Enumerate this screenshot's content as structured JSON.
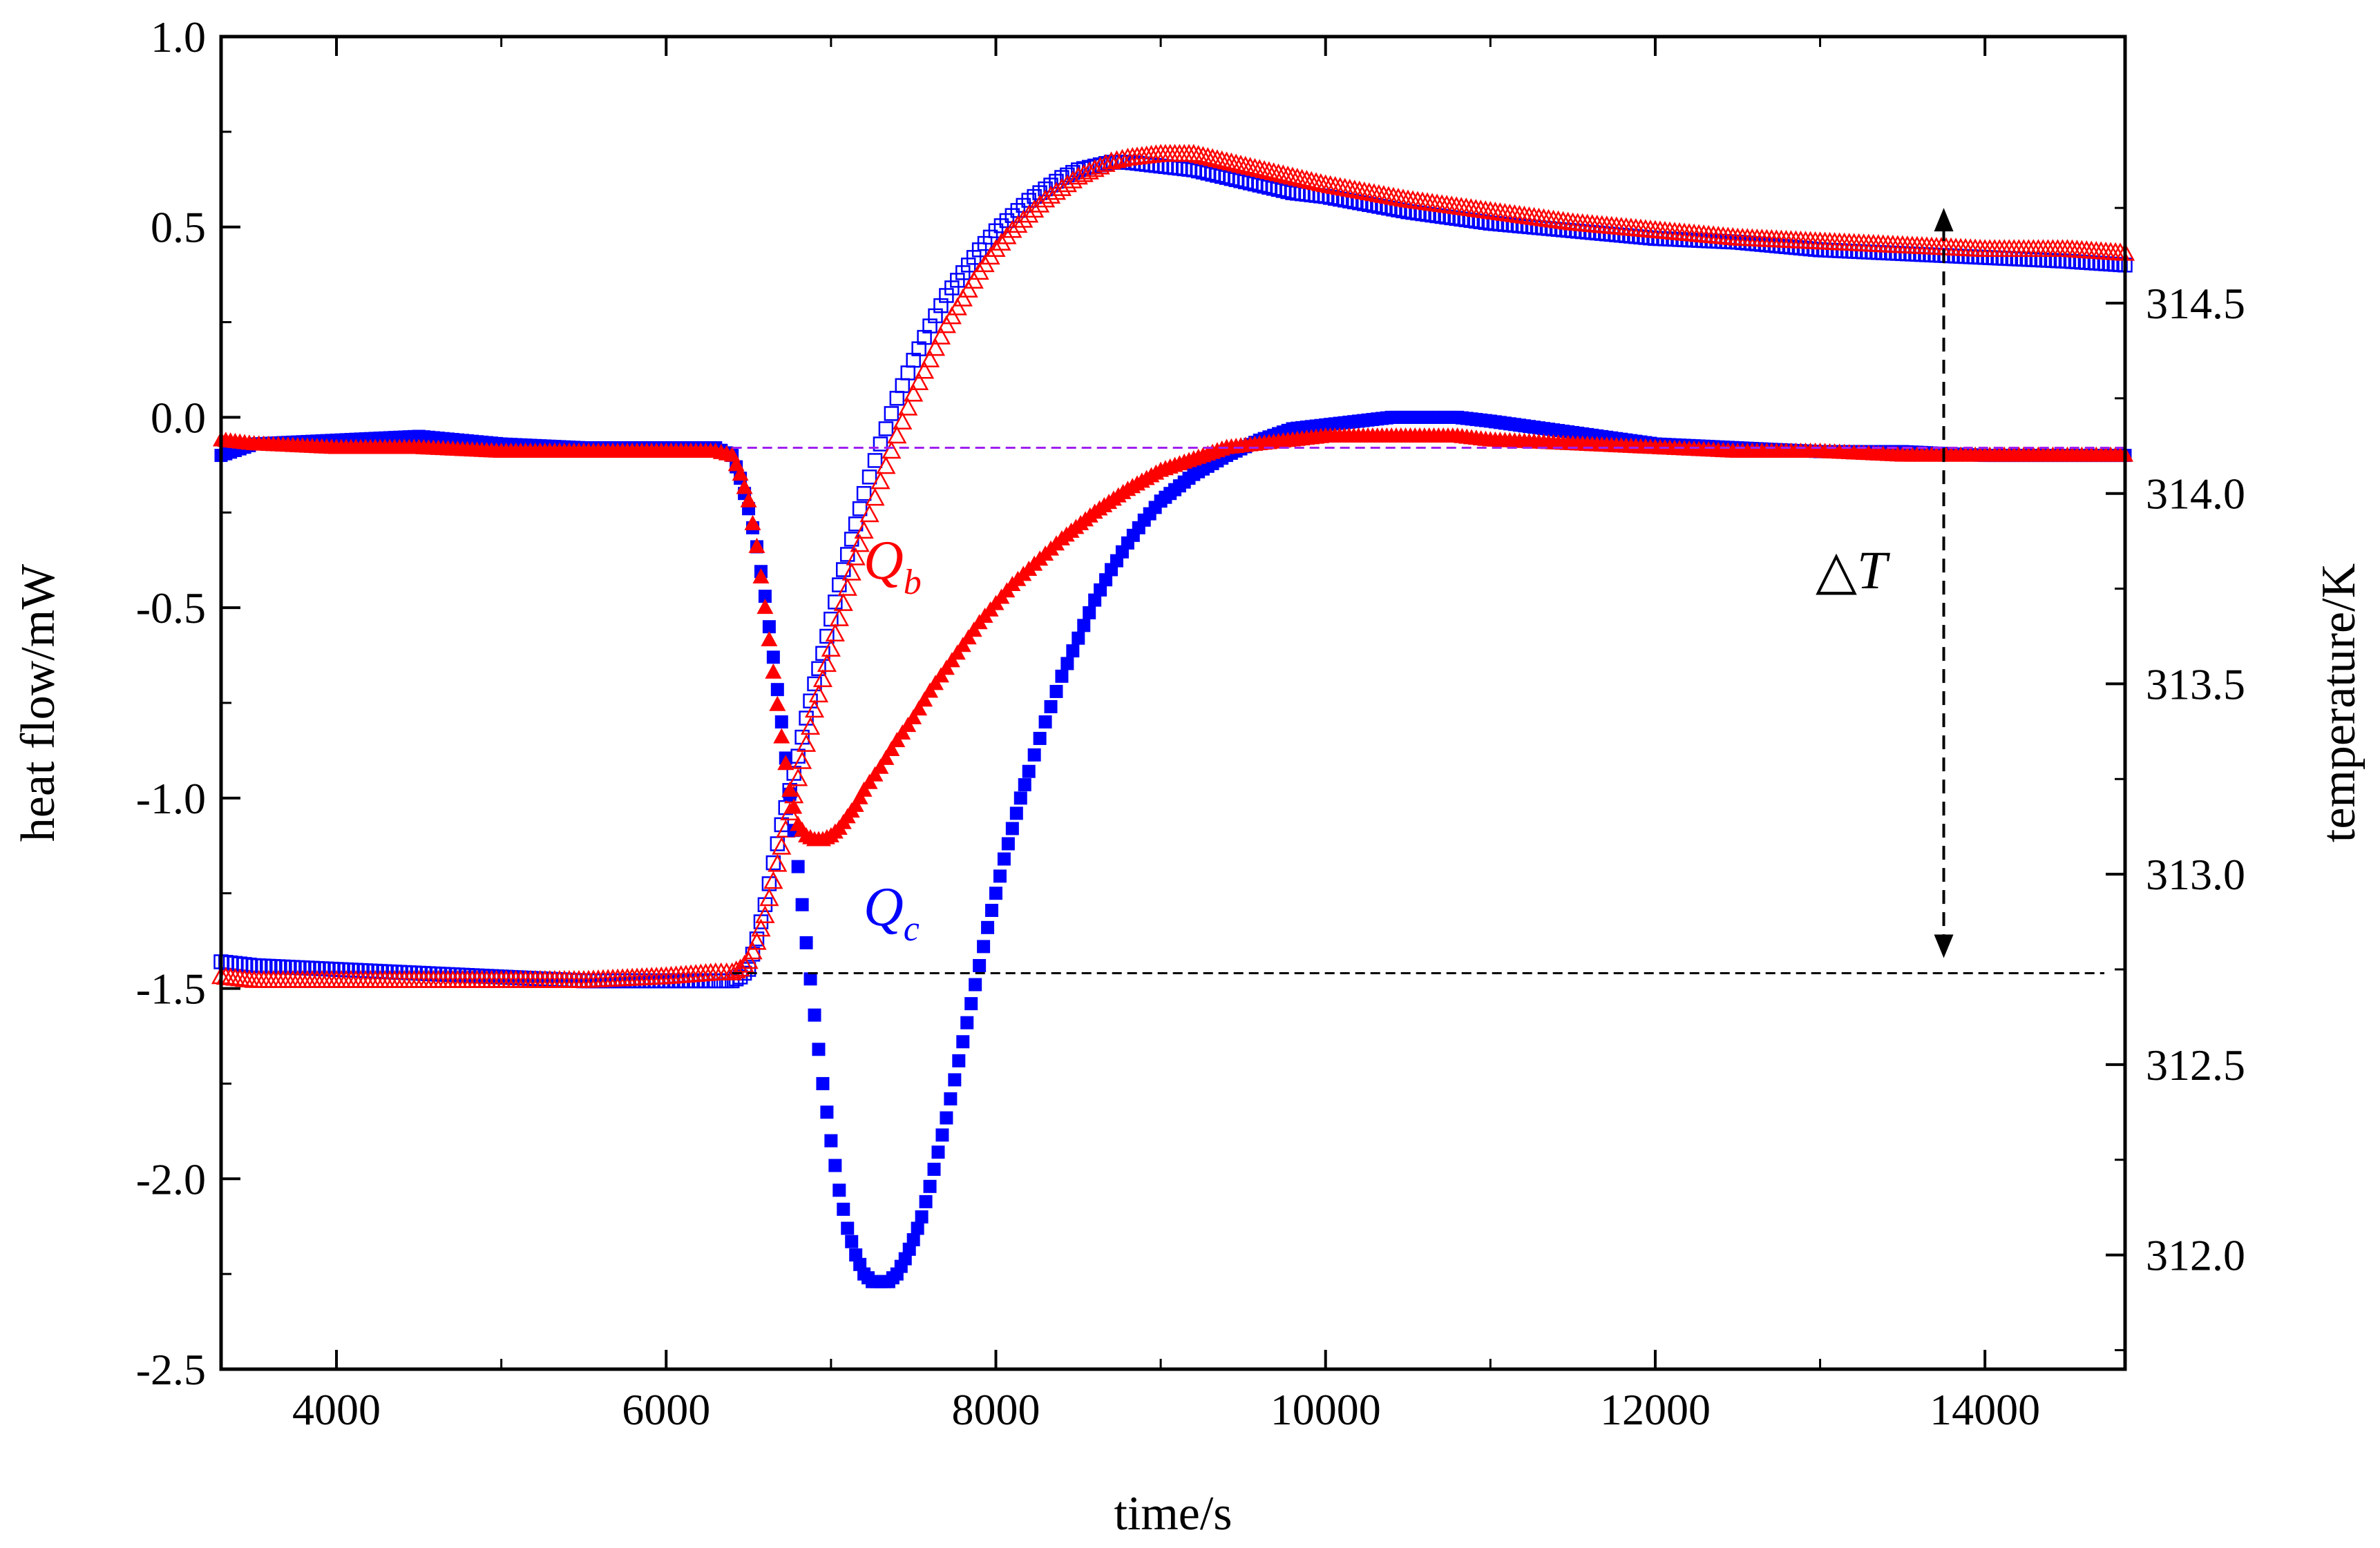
{
  "chart_data": {
    "type": "scatter",
    "xlabel": "time/s",
    "ylabel_left": "heat flow/mW",
    "ylabel_right": "temperature/K",
    "xlim": [
      3300,
      14850
    ],
    "ylim_left": [
      -2.5,
      1.0
    ],
    "ylim_right": [
      311.7,
      315.2
    ],
    "x_ticks": [
      4000,
      6000,
      8000,
      10000,
      12000,
      14000
    ],
    "y_left_ticks": [
      "1.0",
      "0.5",
      "0.0",
      "-0.5",
      "-1.0",
      "-1.5",
      "-2.0",
      "-2.5"
    ],
    "y_left_tick_values": [
      1.0,
      0.5,
      0.0,
      -0.5,
      -1.0,
      -1.5,
      -2.0,
      -2.5
    ],
    "y_right_ticks": [
      "314.5",
      "314.0",
      "313.5",
      "313.0",
      "312.5",
      "312.0"
    ],
    "y_right_tick_values": [
      314.5,
      314.0,
      313.5,
      313.0,
      312.5,
      312.0
    ],
    "grid": false,
    "series": [
      {
        "name": "Q_c heat flow",
        "axis": "left",
        "marker": "filled-square",
        "color": "#0000ff",
        "x": [
          3300,
          3500,
          4000,
          4500,
          5000,
          5500,
          6000,
          6300,
          6400,
          6450,
          6500,
          6550,
          6600,
          6650,
          6700,
          6750,
          6800,
          6850,
          6900,
          6950,
          7000,
          7050,
          7100,
          7150,
          7200,
          7250,
          7300,
          7350,
          7400,
          7450,
          7500,
          7550,
          7600,
          7650,
          7700,
          7750,
          7800,
          7850,
          7900,
          7950,
          8000,
          8050,
          8100,
          8150,
          8200,
          8300,
          8400,
          8500,
          8600,
          8700,
          8800,
          8900,
          9000,
          9200,
          9400,
          9600,
          9800,
          10000,
          10200,
          10400,
          10600,
          10800,
          11000,
          11500,
          12000,
          12500,
          13000,
          13500,
          14000,
          14500,
          14850
        ],
        "y": [
          -0.1,
          -0.07,
          -0.06,
          -0.05,
          -0.07,
          -0.08,
          -0.08,
          -0.08,
          -0.1,
          -0.16,
          -0.24,
          -0.34,
          -0.47,
          -0.63,
          -0.8,
          -0.99,
          -1.18,
          -1.38,
          -1.57,
          -1.75,
          -1.9,
          -2.03,
          -2.13,
          -2.2,
          -2.25,
          -2.27,
          -2.27,
          -2.27,
          -2.25,
          -2.21,
          -2.16,
          -2.1,
          -2.02,
          -1.93,
          -1.84,
          -1.74,
          -1.64,
          -1.54,
          -1.44,
          -1.34,
          -1.25,
          -1.16,
          -1.08,
          -1.0,
          -0.93,
          -0.8,
          -0.68,
          -0.58,
          -0.48,
          -0.4,
          -0.33,
          -0.27,
          -0.22,
          -0.15,
          -0.1,
          -0.06,
          -0.03,
          -0.02,
          -0.01,
          0.0,
          0.0,
          0.0,
          -0.01,
          -0.04,
          -0.07,
          -0.08,
          -0.09,
          -0.09,
          -0.1,
          -0.1,
          -0.1
        ]
      },
      {
        "name": "Q_b heat flow",
        "axis": "left",
        "marker": "filled-triangle",
        "color": "#ff0000",
        "x": [
          3300,
          3500,
          4000,
          4500,
          5000,
          5500,
          6000,
          6300,
          6400,
          6450,
          6500,
          6550,
          6600,
          6650,
          6700,
          6750,
          6800,
          6850,
          6900,
          6950,
          7000,
          7050,
          7100,
          7150,
          7200,
          7300,
          7400,
          7500,
          7600,
          7700,
          7800,
          7900,
          8000,
          8100,
          8200,
          8300,
          8400,
          8600,
          8800,
          9000,
          9200,
          9400,
          9600,
          9800,
          10000,
          10200,
          10400,
          10600,
          10800,
          11000,
          11500,
          12000,
          12500,
          13000,
          13500,
          14000,
          14500,
          14850
        ],
        "y": [
          -0.06,
          -0.07,
          -0.08,
          -0.08,
          -0.09,
          -0.09,
          -0.09,
          -0.09,
          -0.1,
          -0.15,
          -0.22,
          -0.34,
          -0.5,
          -0.67,
          -0.84,
          -0.98,
          -1.07,
          -1.1,
          -1.11,
          -1.11,
          -1.1,
          -1.08,
          -1.05,
          -1.02,
          -0.98,
          -0.92,
          -0.85,
          -0.79,
          -0.72,
          -0.66,
          -0.6,
          -0.54,
          -0.49,
          -0.44,
          -0.4,
          -0.36,
          -0.32,
          -0.25,
          -0.19,
          -0.14,
          -0.11,
          -0.08,
          -0.07,
          -0.06,
          -0.05,
          -0.05,
          -0.05,
          -0.05,
          -0.05,
          -0.06,
          -0.07,
          -0.08,
          -0.09,
          -0.09,
          -0.1,
          -0.1,
          -0.1,
          -0.1
        ]
      },
      {
        "name": "temperature (c)",
        "axis": "right",
        "marker": "open-square",
        "color": "#0000ff",
        "x": [
          3300,
          3500,
          4000,
          4500,
          5000,
          5500,
          6000,
          6300,
          6400,
          6450,
          6500,
          6550,
          6600,
          6650,
          6700,
          6750,
          6800,
          6850,
          6900,
          6950,
          7000,
          7050,
          7100,
          7150,
          7200,
          7300,
          7400,
          7500,
          7600,
          7700,
          7800,
          7900,
          8000,
          8100,
          8200,
          8300,
          8400,
          8500,
          8600,
          8700,
          8800,
          9000,
          9200,
          9400,
          9600,
          9800,
          10000,
          10500,
          11000,
          11500,
          12000,
          12500,
          13000,
          13500,
          14000,
          14500,
          14850
        ],
        "y": [
          312.77,
          312.76,
          312.75,
          312.74,
          312.73,
          312.72,
          312.72,
          312.72,
          312.72,
          312.73,
          312.75,
          312.83,
          312.92,
          313.03,
          313.13,
          313.22,
          313.31,
          313.41,
          313.5,
          313.58,
          313.67,
          313.76,
          313.84,
          313.92,
          314.0,
          314.13,
          314.25,
          314.35,
          314.44,
          314.52,
          314.58,
          314.64,
          314.69,
          314.73,
          314.77,
          314.8,
          314.83,
          314.85,
          314.86,
          314.87,
          314.87,
          314.86,
          314.85,
          314.83,
          314.81,
          314.79,
          314.78,
          314.74,
          314.71,
          314.69,
          314.67,
          314.66,
          314.64,
          314.63,
          314.62,
          314.61,
          314.6
        ]
      },
      {
        "name": "temperature (b)",
        "axis": "right",
        "marker": "open-triangle",
        "color": "#ff0000",
        "x": [
          3300,
          3500,
          4000,
          4500,
          5000,
          5500,
          6000,
          6300,
          6400,
          6450,
          6500,
          6550,
          6600,
          6650,
          6700,
          6750,
          6800,
          6850,
          6900,
          6950,
          7000,
          7050,
          7100,
          7150,
          7200,
          7300,
          7400,
          7500,
          7600,
          7700,
          7800,
          7900,
          8000,
          8100,
          8200,
          8300,
          8400,
          8500,
          8600,
          8700,
          8800,
          9000,
          9200,
          9400,
          9600,
          9800,
          10000,
          10500,
          11000,
          11500,
          12000,
          12500,
          13000,
          13500,
          14000,
          14500,
          14850
        ],
        "y": [
          312.73,
          312.72,
          312.72,
          312.72,
          312.72,
          312.72,
          312.73,
          312.74,
          312.74,
          312.75,
          312.77,
          312.82,
          312.89,
          312.98,
          313.07,
          313.16,
          313.25,
          313.34,
          313.43,
          313.51,
          313.59,
          313.67,
          313.75,
          313.83,
          313.9,
          314.03,
          314.15,
          314.26,
          314.35,
          314.44,
          314.51,
          314.58,
          314.64,
          314.69,
          314.73,
          314.77,
          314.8,
          314.83,
          314.85,
          314.87,
          314.88,
          314.89,
          314.89,
          314.87,
          314.85,
          314.83,
          314.81,
          314.77,
          314.74,
          314.71,
          314.69,
          314.67,
          314.66,
          314.65,
          314.64,
          314.64,
          314.63
        ]
      }
    ],
    "annotations": {
      "qb_main": "Q",
      "qb_sub": "b",
      "qc_main": "Q",
      "qc_sub": "c",
      "delta_t": "△T",
      "upper_dashed_line_heat_flow": -0.08,
      "lower_dashed_line_heat_flow": -1.46,
      "delta_arrow_x": 13750,
      "delta_arrow_top_heat_flow": 0.55,
      "delta_arrow_bottom_heat_flow": -1.42
    },
    "colors": {
      "blue": "#0000ff",
      "red": "#ff0000",
      "purple_dash": "#a020f0",
      "black_dash": "#000000"
    }
  }
}
